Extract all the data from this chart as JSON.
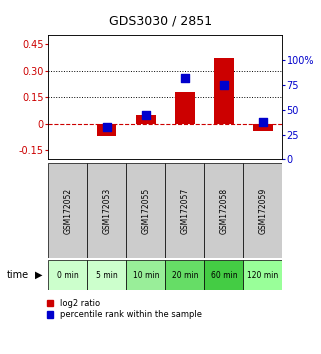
{
  "title": "GDS3030 / 2851",
  "samples": [
    "GSM172052",
    "GSM172053",
    "GSM172055",
    "GSM172057",
    "GSM172058",
    "GSM172059"
  ],
  "time_labels": [
    "0 min",
    "5 min",
    "10 min",
    "20 min",
    "60 min",
    "120 min"
  ],
  "log2_ratio": [
    0.0,
    -0.07,
    0.05,
    0.18,
    0.37,
    -0.04
  ],
  "percentile_rank": [
    null,
    33,
    45,
    82,
    75,
    38
  ],
  "left_ylim": [
    -0.2,
    0.5
  ],
  "right_ylim": [
    0,
    125
  ],
  "left_yticks": [
    -0.15,
    0.0,
    0.15,
    0.3,
    0.45
  ],
  "right_yticks": [
    0,
    25,
    50,
    75,
    100
  ],
  "left_ytick_labels": [
    "-0.15",
    "0",
    "0.15",
    "0.30",
    "0.45"
  ],
  "right_ytick_labels": [
    "0",
    "25",
    "50",
    "75",
    "100%"
  ],
  "bar_color": "#cc0000",
  "dot_color": "#0000cc",
  "hline_zero_color": "#cc0000",
  "hline_dotted_color": "#000000",
  "sample_box_color": "#cccccc",
  "time_box_colors": [
    "#ccffcc",
    "#ccffcc",
    "#99ee99",
    "#66dd66",
    "#44cc44",
    "#99ff99"
  ],
  "left_label_color": "#cc0000",
  "right_label_color": "#0000cc",
  "bar_width": 0.5,
  "dot_size": 30,
  "figwidth": 3.21,
  "figheight": 3.54,
  "dpi": 100
}
